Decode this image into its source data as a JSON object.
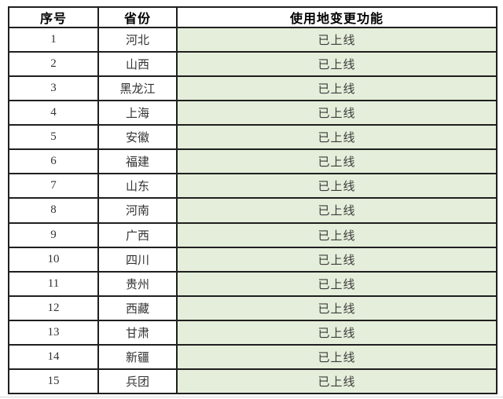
{
  "table": {
    "columns": [
      {
        "key": "no",
        "label": "序号"
      },
      {
        "key": "province",
        "label": "省份"
      },
      {
        "key": "status",
        "label": "使用地变更功能"
      }
    ],
    "rows": [
      {
        "no": "1",
        "province": "河北",
        "status": "已上线"
      },
      {
        "no": "2",
        "province": "山西",
        "status": "已上线"
      },
      {
        "no": "3",
        "province": "黑龙江",
        "status": "已上线"
      },
      {
        "no": "4",
        "province": "上海",
        "status": "已上线"
      },
      {
        "no": "5",
        "province": "安徽",
        "status": "已上线"
      },
      {
        "no": "6",
        "province": "福建",
        "status": "已上线"
      },
      {
        "no": "7",
        "province": "山东",
        "status": "已上线"
      },
      {
        "no": "8",
        "province": "河南",
        "status": "已上线"
      },
      {
        "no": "9",
        "province": "广西",
        "status": "已上线"
      },
      {
        "no": "10",
        "province": "四川",
        "status": "已上线"
      },
      {
        "no": "11",
        "province": "贵州",
        "status": "已上线"
      },
      {
        "no": "12",
        "province": "西藏",
        "status": "已上线"
      },
      {
        "no": "13",
        "province": "甘肃",
        "status": "已上线"
      },
      {
        "no": "14",
        "province": "新疆",
        "status": "已上线"
      },
      {
        "no": "15",
        "province": "兵团",
        "status": "已上线"
      }
    ],
    "colors": {
      "status_cell_bg": "#e4eeda",
      "border": "#1f1f1f",
      "header_text": "#000000",
      "body_text": "#333333",
      "status_text": "#3d3d3d"
    }
  },
  "page": {
    "divider_color": "#d9d9d9"
  }
}
